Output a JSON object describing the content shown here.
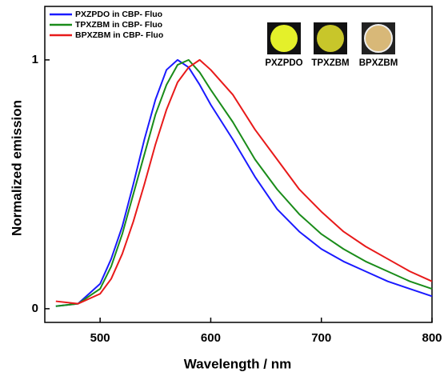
{
  "chart_data": {
    "type": "line",
    "x_label": "Wavelength / nm",
    "y_label": "Normalized emission",
    "x": [
      460,
      480,
      500,
      510,
      520,
      530,
      540,
      550,
      560,
      570,
      580,
      590,
      600,
      620,
      640,
      660,
      680,
      700,
      720,
      740,
      760,
      780,
      800
    ],
    "series": [
      {
        "name": "PXZPDO in CBP- Fluo",
        "color": "#1a1aff",
        "values": [
          0.01,
          0.02,
          0.1,
          0.2,
          0.33,
          0.5,
          0.68,
          0.84,
          0.96,
          1.0,
          0.97,
          0.9,
          0.82,
          0.68,
          0.53,
          0.4,
          0.31,
          0.24,
          0.19,
          0.15,
          0.11,
          0.08,
          0.05
        ]
      },
      {
        "name": "TPXZBM in CBP- Fluo",
        "color": "#1a8c1a",
        "values": [
          0.01,
          0.02,
          0.08,
          0.17,
          0.3,
          0.46,
          0.62,
          0.78,
          0.9,
          0.98,
          1.0,
          0.95,
          0.88,
          0.75,
          0.6,
          0.48,
          0.38,
          0.3,
          0.24,
          0.19,
          0.15,
          0.11,
          0.08
        ]
      },
      {
        "name": "BPXZBM in CBP- Fluo",
        "color": "#e81a1a",
        "values": [
          0.03,
          0.02,
          0.06,
          0.12,
          0.22,
          0.35,
          0.5,
          0.66,
          0.8,
          0.91,
          0.97,
          1.0,
          0.96,
          0.86,
          0.72,
          0.6,
          0.48,
          0.39,
          0.31,
          0.25,
          0.2,
          0.15,
          0.11
        ]
      }
    ],
    "xlim": [
      450,
      800
    ],
    "xticks": [
      500,
      600,
      700,
      800
    ],
    "ylim": [
      -0.055,
      1.215
    ],
    "yticks": [
      0,
      1
    ],
    "legend": "upper left",
    "annotations": [
      "PXZPDO",
      "TPXZBM",
      "BPXZBM"
    ]
  }
}
